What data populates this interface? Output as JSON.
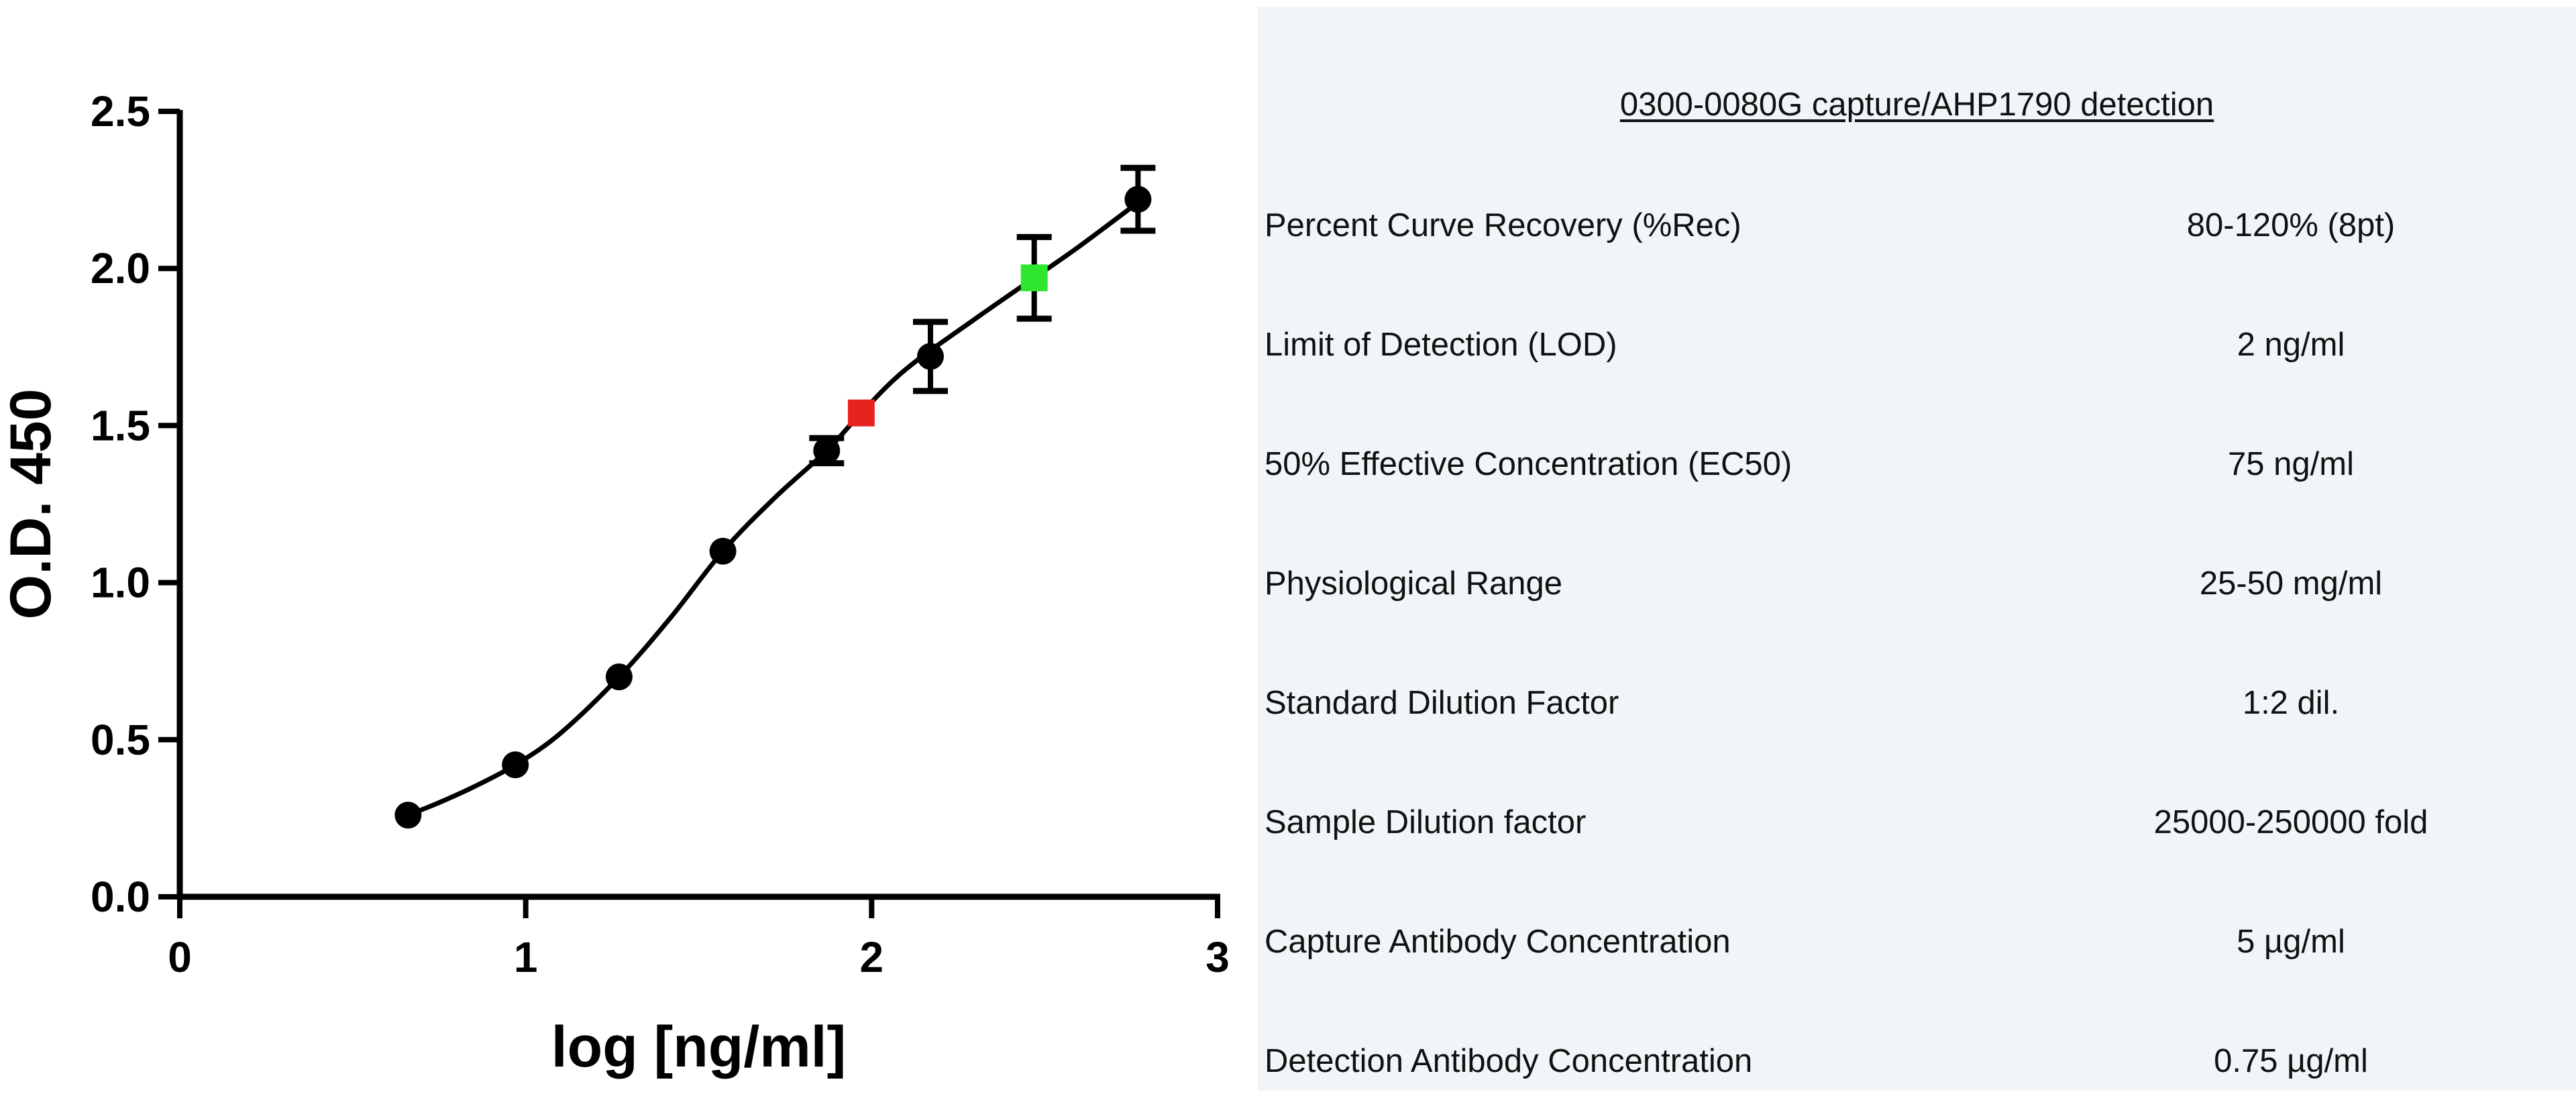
{
  "chart_data": {
    "type": "scatter",
    "xlabel": "log [ng/ml]",
    "ylabel": "O.D. 450",
    "xlim": [
      0,
      3
    ],
    "ylim": [
      0,
      2.5
    ],
    "x_ticks": [
      "0",
      "1",
      "2",
      "3"
    ],
    "y_ticks": [
      "0.0",
      "0.5",
      "1.0",
      "1.5",
      "2.0",
      "2.5"
    ],
    "grid": false,
    "series": [
      {
        "points": [
          {
            "x": 0.66,
            "y": 0.26,
            "err": 0.0,
            "color": "#000000"
          },
          {
            "x": 0.97,
            "y": 0.42,
            "err": 0.0,
            "color": "#000000"
          },
          {
            "x": 1.27,
            "y": 0.7,
            "err": 0.0,
            "color": "#000000"
          },
          {
            "x": 1.57,
            "y": 1.1,
            "err": 0.0,
            "color": "#000000"
          },
          {
            "x": 1.87,
            "y": 1.42,
            "err": 0.04,
            "color": "#000000"
          },
          {
            "x": 1.97,
            "y": 1.54,
            "err": 0.0,
            "color": "#e8231f"
          },
          {
            "x": 2.17,
            "y": 1.72,
            "err": 0.11,
            "color": "#000000"
          },
          {
            "x": 2.47,
            "y": 1.97,
            "err": 0.13,
            "color": "#2fe62f"
          },
          {
            "x": 2.77,
            "y": 2.22,
            "err": 0.1,
            "color": "#000000"
          }
        ],
        "curve": [
          [
            0.66,
            0.26
          ],
          [
            0.75,
            0.3
          ],
          [
            0.85,
            0.35
          ],
          [
            0.97,
            0.42
          ],
          [
            1.1,
            0.52
          ],
          [
            1.27,
            0.7
          ],
          [
            1.42,
            0.89
          ],
          [
            1.57,
            1.1
          ],
          [
            1.72,
            1.27
          ],
          [
            1.87,
            1.42
          ],
          [
            1.97,
            1.54
          ],
          [
            2.1,
            1.68
          ],
          [
            2.3,
            1.84
          ],
          [
            2.47,
            1.97
          ],
          [
            2.6,
            2.07
          ],
          [
            2.77,
            2.21
          ]
        ]
      }
    ]
  },
  "table": {
    "title": "0300-0080G capture/AHP1790 detection",
    "rows": [
      {
        "label": "Percent Curve Recovery (%Rec)",
        "value": "80-120% (8pt)"
      },
      {
        "label": "Limit of Detection (LOD)",
        "value": "2 ng/ml"
      },
      {
        "label": "50% Effective Concentration (EC50)",
        "value": "75 ng/ml"
      },
      {
        "label": "Physiological Range",
        "value": "25-50 mg/ml"
      },
      {
        "label": "Standard Dilution Factor",
        "value": "1:2 dil."
      },
      {
        "label": "Sample Dilution factor",
        "value": "25000-250000 fold"
      },
      {
        "label": "Capture Antibody Concentration",
        "value": "5 µg/ml"
      },
      {
        "label": "Detection Antibody Concentration",
        "value": "0.75 µg/ml"
      }
    ]
  }
}
